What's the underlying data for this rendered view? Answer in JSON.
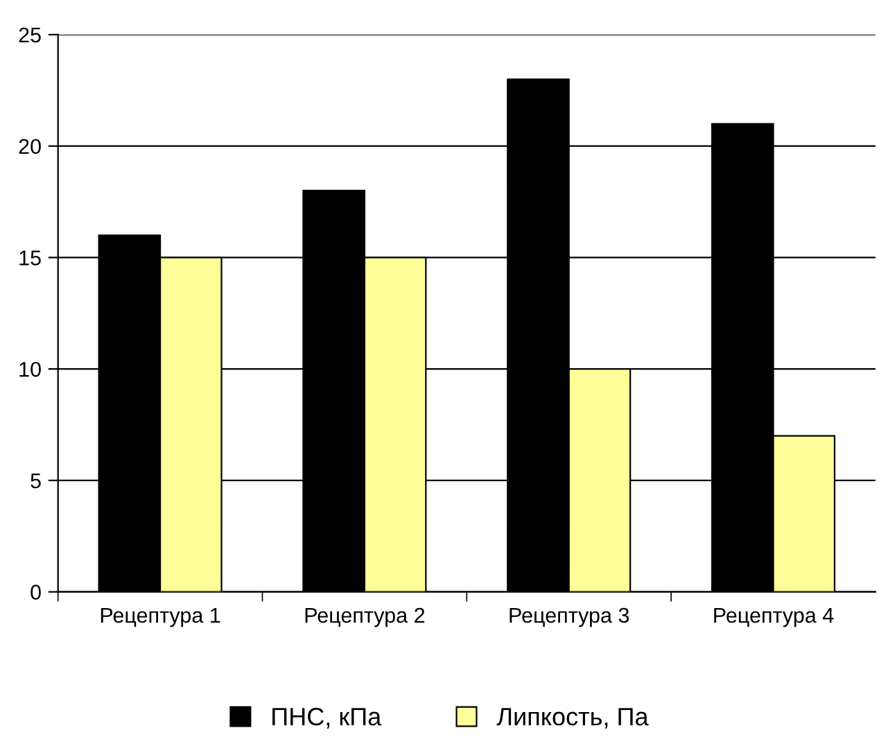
{
  "chart_data": {
    "type": "bar",
    "categories": [
      "Рецептура 1",
      "Рецептура 2",
      "Рецептура 3",
      "Рецептура 4"
    ],
    "series": [
      {
        "name": "ПНС, кПа",
        "color": "#000000",
        "values": [
          16,
          18,
          23,
          21
        ]
      },
      {
        "name": "Липкость, Па",
        "color": "#ffff99",
        "values": [
          15,
          15,
          10,
          7
        ]
      }
    ],
    "ylim": [
      0,
      25
    ],
    "yticks": [
      0,
      5,
      10,
      15,
      20,
      25
    ],
    "grid": "y",
    "legend": "bottom"
  }
}
